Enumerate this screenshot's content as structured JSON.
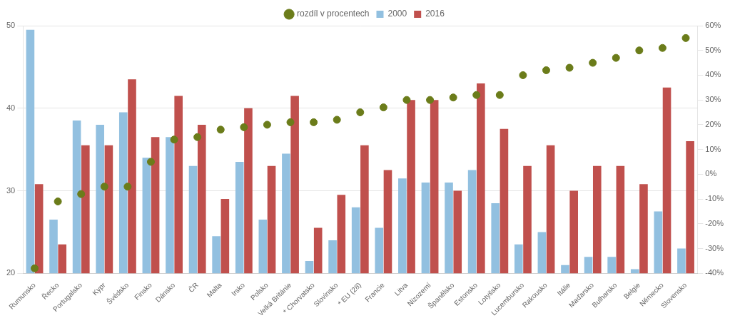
{
  "chart_data": {
    "type": "bar",
    "categories": [
      "Rumunsko",
      "Řecko",
      "Portugalsko",
      "Kypr",
      "Švédsko",
      "Finsko",
      "Dánsko",
      "ČR",
      "Malta",
      "Irsko",
      "Polsko",
      "Velká Británie",
      "* Chorvatsko",
      "Slovinsko",
      "* EU (28)",
      "Francie",
      "Litva",
      "Nizozemí",
      "Španělsko",
      "Estonsko",
      "Lotyšsko",
      "Lucembursko",
      "Rakousko",
      "Itálie",
      "Maďarsko",
      "Bulharsko",
      "Belgie",
      "Německo",
      "Slovensko"
    ],
    "series": [
      {
        "name": "2000",
        "color": "#92C0E0",
        "values": [
          49.5,
          26.5,
          38.5,
          38.0,
          39.5,
          34.0,
          36.5,
          33.0,
          24.5,
          33.5,
          26.5,
          34.5,
          21.5,
          24.0,
          28.0,
          25.5,
          31.5,
          31.0,
          31.0,
          32.5,
          28.5,
          23.5,
          25.0,
          21.0,
          22.0,
          22.0,
          20.5,
          27.5,
          23.0
        ]
      },
      {
        "name": "2016",
        "color": "#C0504D",
        "values": [
          30.8,
          23.5,
          35.5,
          35.5,
          43.5,
          36.5,
          41.5,
          38.0,
          29.0,
          40.0,
          33.0,
          41.5,
          25.5,
          29.5,
          35.5,
          32.5,
          41.0,
          41.0,
          30.0,
          43.0,
          37.5,
          33.0,
          35.5,
          30.0,
          33.0,
          33.0,
          30.8,
          42.5,
          36.0
        ]
      },
      {
        "name": "rozdíl v procentech",
        "color": "#6B7C1A",
        "type": "scatter",
        "marker": "circle",
        "axis": "y2",
        "values": [
          -38,
          -11,
          -8,
          -5,
          -5,
          5,
          14,
          15,
          18,
          19,
          20,
          21,
          21,
          22,
          25,
          27,
          30,
          30,
          31,
          32,
          32,
          40,
          42,
          43,
          45,
          47,
          50,
          51,
          55
        ]
      }
    ],
    "ylim": [
      20,
      50
    ],
    "yticks": [
      20,
      30,
      40,
      50
    ],
    "y2lim": [
      -40,
      60
    ],
    "y2ticks": [
      {
        "value": -40,
        "label": "-40%"
      },
      {
        "value": -30,
        "label": "-30%"
      },
      {
        "value": -20,
        "label": "-20%"
      },
      {
        "value": -10,
        "label": "-10%"
      },
      {
        "value": 0,
        "label": "0%"
      },
      {
        "value": 10,
        "label": "10%"
      },
      {
        "value": 20,
        "label": "20%"
      },
      {
        "value": 30,
        "label": "30%"
      },
      {
        "value": 40,
        "label": "40%"
      },
      {
        "value": 50,
        "label": "50%"
      },
      {
        "value": 60,
        "label": "60%"
      }
    ],
    "grid": true,
    "legend": "top"
  }
}
